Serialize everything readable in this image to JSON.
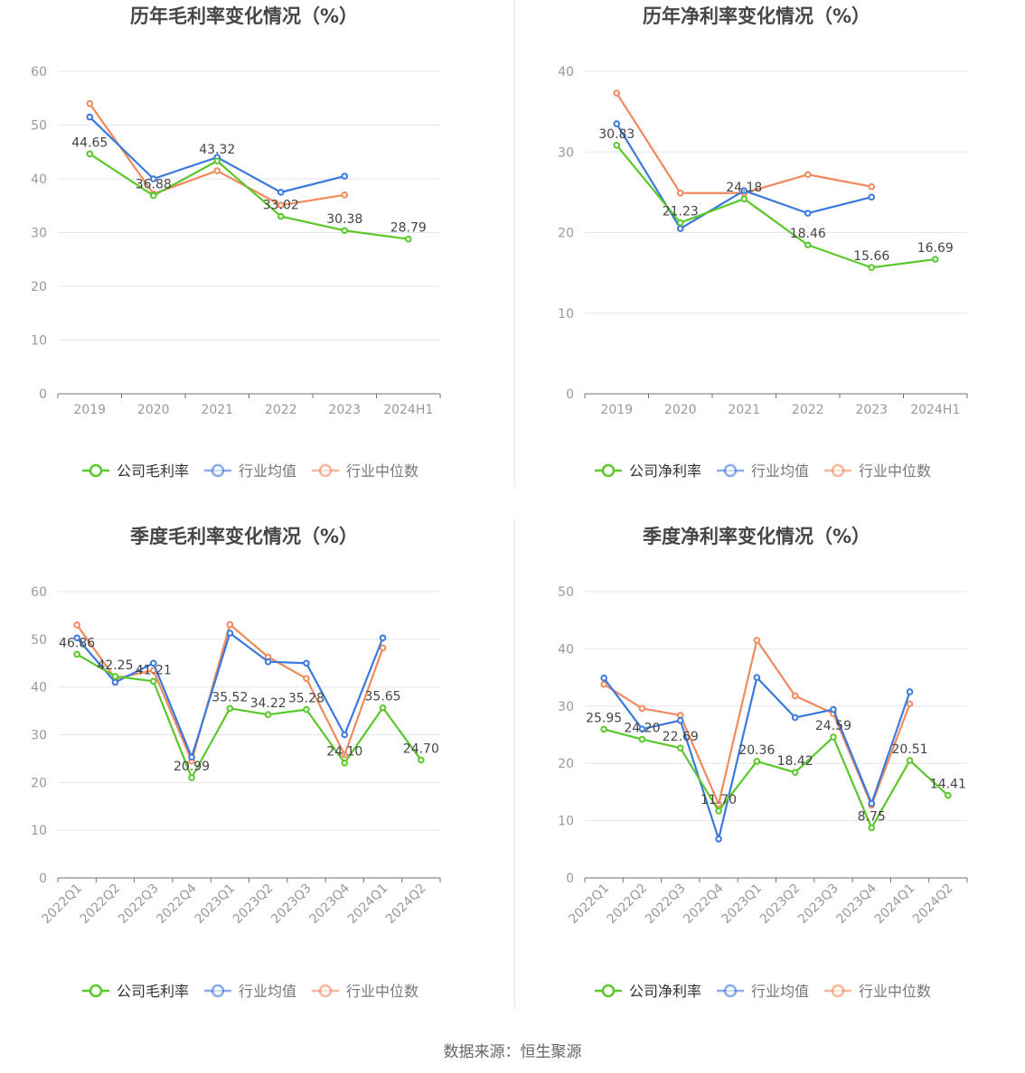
{
  "source_text": "数据来源：恒生聚源",
  "colors": {
    "company": "#5ac72a",
    "avg": "#3b78de",
    "median": "#f08a5d",
    "axis": "#6e7079",
    "grid": "#e0e6f1",
    "label": "#999999",
    "title": "#464646",
    "value": "#444444"
  },
  "chart_data": [
    {
      "type": "line",
      "title": "历年毛利率变化情况（%）",
      "categories": [
        "2019",
        "2020",
        "2021",
        "2022",
        "2023",
        "2024H1"
      ],
      "ylim": [
        0,
        60
      ],
      "yticks": [
        0,
        10,
        20,
        30,
        40,
        50,
        60
      ],
      "grid": true,
      "legend_position": "bottom",
      "series": [
        {
          "name": "公司毛利率",
          "key": "company",
          "values": [
            44.65,
            36.88,
            43.32,
            33.02,
            30.38,
            28.79
          ],
          "labels": [
            "44.65",
            "36.88",
            "43.32",
            "33.02",
            "30.38",
            "28.79"
          ]
        },
        {
          "name": "行业均值",
          "key": "avg",
          "values": [
            51.5,
            40.0,
            44.0,
            37.5,
            40.5,
            null
          ]
        },
        {
          "name": "行业中位数",
          "key": "median",
          "values": [
            54.0,
            37.2,
            41.5,
            35.1,
            37.0,
            null
          ]
        }
      ]
    },
    {
      "type": "line",
      "title": "历年净利率变化情况（%）",
      "categories": [
        "2019",
        "2020",
        "2021",
        "2022",
        "2023",
        "2024H1"
      ],
      "ylim": [
        0,
        40
      ],
      "yticks": [
        0,
        10,
        20,
        30,
        40
      ],
      "grid": true,
      "legend_position": "bottom",
      "series": [
        {
          "name": "公司净利率",
          "key": "company",
          "values": [
            30.83,
            21.23,
            24.18,
            18.46,
            15.66,
            16.69
          ],
          "labels": [
            "30.83",
            "21.23",
            "24.18",
            "18.46",
            "15.66",
            "16.69"
          ]
        },
        {
          "name": "行业均值",
          "key": "avg",
          "values": [
            33.5,
            20.5,
            25.2,
            22.4,
            24.4,
            null
          ]
        },
        {
          "name": "行业中位数",
          "key": "median",
          "values": [
            37.3,
            24.9,
            24.9,
            27.2,
            25.7,
            null
          ]
        }
      ]
    },
    {
      "type": "line",
      "title": "季度毛利率变化情况（%）",
      "categories": [
        "2022Q1",
        "2022Q2",
        "2022Q3",
        "2022Q4",
        "2023Q1",
        "2023Q2",
        "2023Q3",
        "2023Q4",
        "2024Q1",
        "2024Q2"
      ],
      "ylim": [
        0,
        60
      ],
      "yticks": [
        0,
        10,
        20,
        30,
        40,
        50,
        60
      ],
      "grid": true,
      "legend_position": "bottom",
      "rotated_x_labels": true,
      "series": [
        {
          "name": "公司毛利率",
          "key": "company",
          "values": [
            46.86,
            42.25,
            41.21,
            20.99,
            35.52,
            34.22,
            35.28,
            24.1,
            35.65,
            24.7
          ],
          "labels": [
            "46.86",
            "42.25",
            "41.21",
            "20.99",
            "35.52",
            "34.22",
            "35.28",
            "24.10",
            "35.65",
            "24.70"
          ]
        },
        {
          "name": "行业均值",
          "key": "avg",
          "values": [
            50.3,
            41.0,
            45.0,
            25.3,
            51.3,
            45.3,
            45.0,
            30.0,
            50.3,
            null
          ]
        },
        {
          "name": "行业中位数",
          "key": "median",
          "values": [
            53.0,
            41.8,
            43.5,
            24.5,
            53.1,
            46.3,
            41.8,
            25.8,
            48.2,
            null
          ]
        }
      ]
    },
    {
      "type": "line",
      "title": "季度净利率变化情况（%）",
      "categories": [
        "2022Q1",
        "2022Q2",
        "2022Q3",
        "2022Q4",
        "2023Q1",
        "2023Q2",
        "2023Q3",
        "2023Q4",
        "2024Q1",
        "2024Q2"
      ],
      "ylim": [
        0,
        50
      ],
      "yticks": [
        0,
        10,
        20,
        30,
        40,
        50
      ],
      "grid": true,
      "legend_position": "bottom",
      "rotated_x_labels": true,
      "series": [
        {
          "name": "公司净利率",
          "key": "company",
          "values": [
            25.95,
            24.2,
            22.69,
            11.7,
            20.36,
            18.42,
            24.59,
            8.75,
            20.51,
            14.41
          ],
          "labels": [
            "25.95",
            "24.20",
            "22.69",
            "11.70",
            "20.36",
            "18.42",
            "24.59",
            "8.75",
            "20.51",
            "14.41"
          ]
        },
        {
          "name": "行业均值",
          "key": "avg",
          "values": [
            34.9,
            26.0,
            27.5,
            6.8,
            35.0,
            28.0,
            29.4,
            13.0,
            32.5,
            null
          ]
        },
        {
          "name": "行业中位数",
          "key": "median",
          "values": [
            33.8,
            29.6,
            28.4,
            12.9,
            41.5,
            31.8,
            28.7,
            12.7,
            30.4,
            null
          ]
        }
      ]
    }
  ]
}
